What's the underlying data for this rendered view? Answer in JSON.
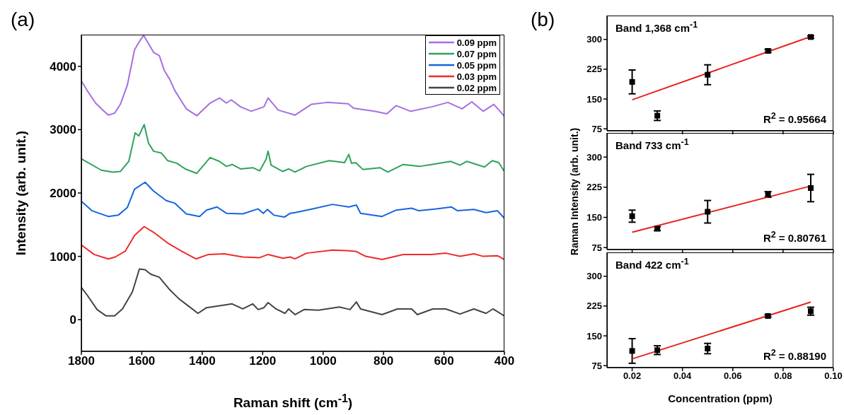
{
  "chart_data": [
    {
      "type": "line",
      "xlabel": "Raman shift (cm$^{-1}$)",
      "ylabel": "Intensity (arb. unit.)",
      "xlim": [
        1800,
        400
      ],
      "xticks": [
        1800,
        1600,
        1400,
        1200,
        1000,
        800,
        600,
        400
      ],
      "ylim": [
        -500,
        4500
      ],
      "yticks": [
        0,
        1000,
        2000,
        3000,
        4000
      ],
      "grid": false,
      "legend": "top right",
      "marker": "none",
      "line_style": "solid",
      "annotations": [
        "(a)"
      ],
      "series": [
        {
          "name": "0.09 ppm",
          "color": "#a66fe0",
          "x": [
            1800,
            1781,
            1753,
            1734,
            1711,
            1690,
            1671,
            1648,
            1624,
            1608,
            1594,
            1561,
            1542,
            1526,
            1507,
            1491,
            1453,
            1418,
            1374,
            1343,
            1320,
            1304,
            1273,
            1238,
            1196,
            1182,
            1149,
            1093,
            1039,
            987,
            917,
            899,
            828,
            789,
            758,
            711,
            641,
            587,
            540,
            508,
            470,
            435,
            400
          ],
          "values": [
            3770,
            3620,
            3420,
            3330,
            3230,
            3260,
            3400,
            3700,
            4260,
            4390,
            4490,
            4220,
            4170,
            3940,
            3790,
            3620,
            3330,
            3220,
            3420,
            3500,
            3420,
            3470,
            3360,
            3290,
            3360,
            3500,
            3310,
            3230,
            3400,
            3430,
            3410,
            3340,
            3290,
            3250,
            3380,
            3290,
            3360,
            3430,
            3330,
            3440,
            3290,
            3400,
            3210
          ]
        },
        {
          "name": "0.07 ppm",
          "color": "#2fa25a",
          "x": [
            1800,
            1734,
            1695,
            1671,
            1643,
            1622,
            1610,
            1592,
            1578,
            1561,
            1535,
            1514,
            1484,
            1456,
            1418,
            1374,
            1343,
            1320,
            1301,
            1273,
            1233,
            1210,
            1189,
            1182,
            1172,
            1133,
            1114,
            1093,
            1055,
            980,
            929,
            915,
            906,
            892,
            868,
            812,
            786,
            735,
            681,
            641,
            578,
            547,
            524,
            466,
            440,
            419,
            400
          ],
          "values": [
            2540,
            2360,
            2330,
            2340,
            2500,
            2950,
            2900,
            3080,
            2790,
            2660,
            2630,
            2510,
            2470,
            2380,
            2310,
            2560,
            2500,
            2420,
            2450,
            2380,
            2400,
            2350,
            2530,
            2660,
            2440,
            2340,
            2380,
            2330,
            2420,
            2510,
            2480,
            2610,
            2470,
            2480,
            2370,
            2400,
            2330,
            2450,
            2420,
            2450,
            2500,
            2440,
            2500,
            2410,
            2510,
            2480,
            2340
          ]
        },
        {
          "name": "0.05 ppm",
          "color": "#1565e0",
          "x": [
            1800,
            1765,
            1711,
            1678,
            1648,
            1624,
            1589,
            1561,
            1519,
            1491,
            1453,
            1409,
            1386,
            1351,
            1320,
            1266,
            1215,
            1198,
            1184,
            1163,
            1128,
            1109,
            1093,
            1035,
            969,
            915,
            890,
            876,
            805,
            758,
            707,
            683,
            625,
            576,
            555,
            501,
            461,
            423,
            400
          ],
          "values": [
            1870,
            1720,
            1630,
            1650,
            1770,
            2060,
            2170,
            2030,
            1880,
            1840,
            1670,
            1630,
            1730,
            1780,
            1680,
            1670,
            1750,
            1680,
            1740,
            1650,
            1620,
            1680,
            1690,
            1750,
            1820,
            1780,
            1810,
            1680,
            1630,
            1730,
            1760,
            1720,
            1750,
            1780,
            1720,
            1740,
            1690,
            1720,
            1600
          ]
        },
        {
          "name": "0.03 ppm",
          "color": "#ee2b2b",
          "x": [
            1800,
            1758,
            1711,
            1688,
            1655,
            1624,
            1592,
            1561,
            1514,
            1468,
            1421,
            1379,
            1327,
            1266,
            1210,
            1182,
            1133,
            1109,
            1093,
            1055,
            969,
            922,
            892,
            859,
            805,
            735,
            641,
            594,
            547,
            501,
            470,
            423,
            400
          ],
          "values": [
            1180,
            1030,
            960,
            990,
            1080,
            1330,
            1470,
            1380,
            1210,
            1080,
            960,
            1030,
            1040,
            990,
            980,
            1030,
            970,
            990,
            960,
            1050,
            1100,
            1090,
            1080,
            1000,
            950,
            1030,
            1030,
            1050,
            1000,
            1040,
            1000,
            1010,
            950
          ]
        },
        {
          "name": "0.02 ppm",
          "color": "#444444",
          "x": [
            1800,
            1781,
            1748,
            1718,
            1690,
            1664,
            1631,
            1608,
            1589,
            1571,
            1542,
            1507,
            1477,
            1444,
            1414,
            1386,
            1343,
            1301,
            1266,
            1233,
            1215,
            1196,
            1182,
            1156,
            1126,
            1114,
            1093,
            1063,
            1016,
            946,
            911,
            890,
            876,
            805,
            754,
            707,
            688,
            637,
            594,
            547,
            501,
            461,
            438,
            400
          ],
          "values": [
            510,
            390,
            160,
            60,
            60,
            170,
            440,
            800,
            790,
            720,
            670,
            470,
            330,
            210,
            100,
            190,
            220,
            250,
            170,
            250,
            160,
            190,
            270,
            170,
            100,
            170,
            80,
            160,
            150,
            200,
            160,
            280,
            170,
            80,
            170,
            170,
            80,
            170,
            170,
            90,
            170,
            100,
            170,
            60
          ]
        }
      ]
    },
    {
      "type": "scatter",
      "xlim": [
        0.01,
        0.1
      ],
      "xticks": [
        0.02,
        0.04,
        0.06,
        0.08,
        0.1
      ],
      "ylim": [
        70,
        360
      ],
      "yticks": [
        75,
        150,
        225,
        300
      ],
      "tick_labels": "y",
      "grid": false,
      "annotations": [
        "(b)",
        "Band 1,368 cm$^{-1}$",
        "R$^{2}$ = 0.95664"
      ],
      "series": [
        {
          "color": "#000000",
          "marker": "square",
          "x": [
            0.02,
            0.03,
            0.05,
            0.074,
            0.091
          ],
          "values": [
            193,
            108,
            211,
            271,
            306
          ],
          "errors": [
            30,
            12,
            25,
            4,
            3
          ]
        },
        {
          "type": "line",
          "marker": "none",
          "color": "#e8231f",
          "x": [
            0.02,
            0.091
          ],
          "values": [
            148,
            307
          ]
        }
      ]
    },
    {
      "type": "scatter",
      "ylabel": "Raman Intensity (arb. unit.)",
      "xlim": [
        0.01,
        0.1
      ],
      "xticks": [
        0.02,
        0.04,
        0.06,
        0.08,
        0.1
      ],
      "ylim": [
        70,
        360
      ],
      "yticks": [
        75,
        150,
        225,
        300
      ],
      "tick_labels": "y",
      "grid": false,
      "annotations": [
        "Band 733 cm$^{-1}$",
        "R$^{2}$ = 0.80761"
      ],
      "series": [
        {
          "color": "#000000",
          "marker": "square",
          "x": [
            0.02,
            0.03,
            0.05,
            0.074,
            0.091
          ],
          "values": [
            153,
            122,
            164,
            207,
            223
          ],
          "errors": [
            15,
            5,
            28,
            7,
            34
          ]
        },
        {
          "type": "line",
          "marker": "none",
          "color": "#e8231f",
          "x": [
            0.02,
            0.091
          ],
          "values": [
            113,
            228
          ]
        }
      ]
    },
    {
      "type": "scatter",
      "xlabel": "Concentration (ppm)",
      "xlim": [
        0.01,
        0.1
      ],
      "xticks": [
        0.02,
        0.04,
        0.06,
        0.08,
        {
          "value": 0.1,
          "label": "0.10"
        }
      ],
      "ylim": [
        70,
        360
      ],
      "yticks": [
        75,
        150,
        225,
        300
      ],
      "grid": false,
      "annotations": [
        "Band 422 cm$^{-1}$",
        "R$^{2}$ = 0.88190"
      ],
      "series": [
        {
          "color": "#000000",
          "marker": "square",
          "x": [
            0.02,
            0.03,
            0.05,
            0.074,
            0.091
          ],
          "values": [
            112,
            114,
            118,
            200,
            212
          ],
          "errors": [
            31,
            11,
            13,
            3,
            10
          ]
        },
        {
          "type": "line",
          "marker": "none",
          "color": "#e8231f",
          "x": [
            0.02,
            0.091
          ],
          "values": [
            92,
            235
          ]
        }
      ]
    }
  ]
}
